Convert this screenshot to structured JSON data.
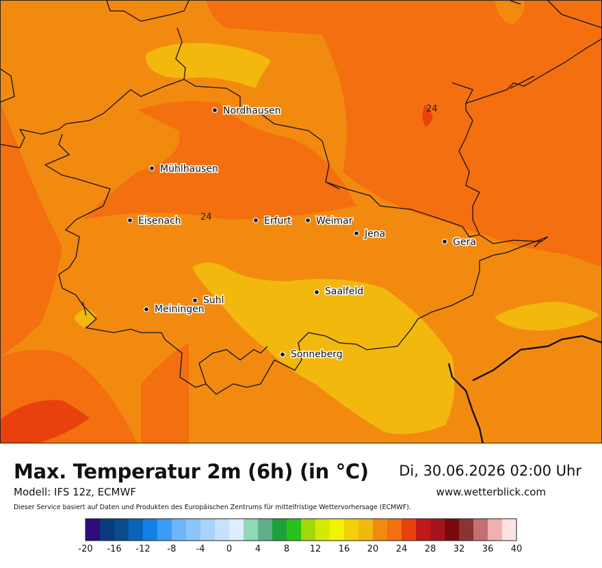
{
  "title": "Max. Temperatur 2m (6h) (in °C)",
  "datetime": "Di, 30.06.2026 02:00 Uhr",
  "model": "Modell: IFS 12z, ECMWF",
  "website": "www.wetterblick.com",
  "disclaimer": "Dieser Service basiert auf Daten und Produkten des Europäischen Zentrums für mittelfristige Wettervorhersage (ECMWF).",
  "colors": {
    "t18_20": "#f2b80e",
    "t20_22": "#f28a10",
    "t22_24": "#f36f0f",
    "t24_26": "#e8410e"
  },
  "cities": [
    {
      "name": "Nordhausen"
    },
    {
      "name": "Mühlhausen"
    },
    {
      "name": "Eisenach"
    },
    {
      "name": "Erfurt"
    },
    {
      "name": "Weimar"
    },
    {
      "name": "Jena"
    },
    {
      "name": "Gera"
    },
    {
      "name": "Saalfeld"
    },
    {
      "name": "Suhl"
    },
    {
      "name": "Meiningen"
    },
    {
      "name": "Sonneberg"
    }
  ],
  "contour_labels": [
    "24",
    "24"
  ],
  "legend": {
    "ticks": [
      "-20",
      "-16",
      "-12",
      "-8",
      "-4",
      "0",
      "4",
      "8",
      "12",
      "16",
      "20",
      "24",
      "28",
      "32",
      "36",
      "40"
    ],
    "colors": [
      "#2e0a7a",
      "#0a3a7e",
      "#0a4c8e",
      "#0a63b8",
      "#1480e6",
      "#3a9cf2",
      "#6db6f8",
      "#8ac4f8",
      "#a8d4fa",
      "#c4e2fc",
      "#ddeefe",
      "#8fd8b8",
      "#5fb08a",
      "#1ea03c",
      "#28c01c",
      "#a0d80a",
      "#d4ea06",
      "#f2f204",
      "#f2d00a",
      "#f2b80e",
      "#f28a10",
      "#f36f0f",
      "#e8410e",
      "#c01818",
      "#a8141c",
      "#7c0a0a",
      "#8c3434",
      "#c47070",
      "#f0b0b0",
      "#fde2e2"
    ]
  }
}
